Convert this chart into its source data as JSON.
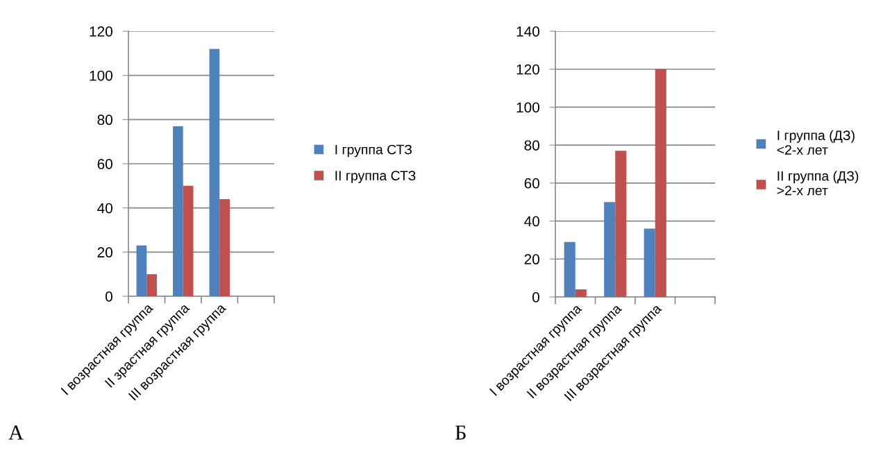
{
  "chart_data": [
    {
      "type": "bar",
      "title": "А",
      "categories": [
        "I возрастная группа",
        "II зрастная группа",
        "III возрастная группа",
        null
      ],
      "series": [
        {
          "name": "I группа СТЗ",
          "color": "#4f81bd",
          "values": [
            23,
            77,
            112,
            null
          ]
        },
        {
          "name": "II группа СТЗ",
          "color": "#c0504d",
          "values": [
            10,
            50,
            44,
            null
          ]
        }
      ],
      "ylim": [
        0,
        120
      ],
      "yticks": [
        0,
        20,
        40,
        60,
        80,
        100,
        120
      ],
      "grid": "y",
      "legend": "right"
    },
    {
      "type": "bar",
      "title": "Б",
      "categories": [
        "I возрастная группа",
        "II возрастная группа",
        "III возрастная группа",
        null
      ],
      "series": [
        {
          "name": "I группа (ДЗ)\n<2-х лет",
          "color": "#4f81bd",
          "values": [
            29,
            50,
            36,
            null
          ]
        },
        {
          "name": "II группа (ДЗ)\n>2-х лет",
          "color": "#c0504d",
          "values": [
            4,
            77,
            120,
            null
          ]
        }
      ],
      "ylim": [
        0,
        140
      ],
      "yticks": [
        0,
        20,
        40,
        60,
        80,
        100,
        120,
        140
      ],
      "grid": "y",
      "legend": "right"
    }
  ]
}
